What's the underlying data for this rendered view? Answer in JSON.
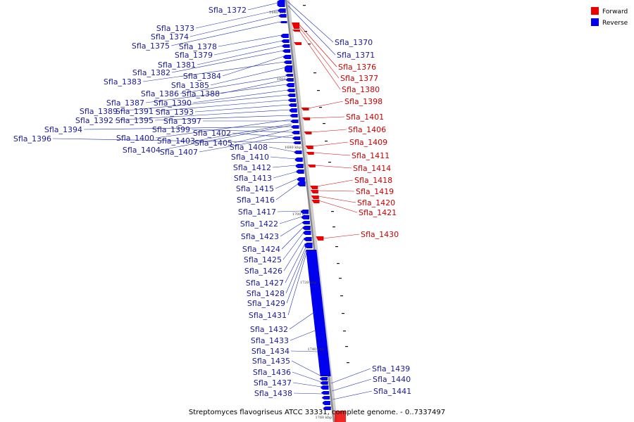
{
  "caption": "Streptomyces flavogriseus ATCC 33331, complete genome. - 0..7337497",
  "legend": [
    {
      "label": "Forward",
      "color": "#ee0000"
    },
    {
      "label": "Reverse",
      "color": "#0000ee"
    }
  ],
  "ticks": [
    "1640 kbp",
    "1660 kbp",
    "1680 kbp",
    "1700 kbp",
    "1720 kbp",
    "1740 kbp",
    "1760 kbp"
  ],
  "labels_reverse": [
    "Sfla_1372",
    "Sfla_1373",
    "Sfla_1374",
    "Sfla_1375",
    "Sfla_1378",
    "Sfla_1379",
    "Sfla_1381",
    "Sfla_1382",
    "Sfla_1384",
    "Sfla_1383",
    "Sfla_1385",
    "Sfla_1386",
    "Sfla_1388",
    "Sfla_1387",
    "Sfla_1390",
    "Sfla_1389",
    "Sfla_1391",
    "Sfla_1393",
    "Sfla_1392",
    "Sfla_1395",
    "Sfla_1397",
    "Sfla_1394",
    "Sfla_1399",
    "Sfla_1402",
    "Sfla_1396",
    "Sfla_1400",
    "Sfla_1403",
    "Sfla_1405",
    "Sfla_1404",
    "Sfla_1407",
    "Sfla_1408",
    "Sfla_1410",
    "Sfla_1412",
    "Sfla_1413",
    "Sfla_1415",
    "Sfla_1416",
    "Sfla_1417",
    "Sfla_1422",
    "Sfla_1423",
    "Sfla_1424",
    "Sfla_1425",
    "Sfla_1426",
    "Sfla_1427",
    "Sfla_1428",
    "Sfla_1429",
    "Sfla_1431",
    "Sfla_1432",
    "Sfla_1433",
    "Sfla_1434",
    "Sfla_1435",
    "Sfla_1436",
    "Sfla_1437",
    "Sfla_1438",
    "Sfla_1370",
    "Sfla_1371",
    "Sfla_1439",
    "Sfla_1440",
    "Sfla_1441"
  ],
  "labels_forward": [
    "Sfla_1376",
    "Sfla_1377",
    "Sfla_1380",
    "Sfla_1398",
    "Sfla_1401",
    "Sfla_1406",
    "Sfla_1409",
    "Sfla_1411",
    "Sfla_1414",
    "Sfla_1418",
    "Sfla_1419",
    "Sfla_1420",
    "Sfla_1421",
    "Sfla_1430"
  ]
}
